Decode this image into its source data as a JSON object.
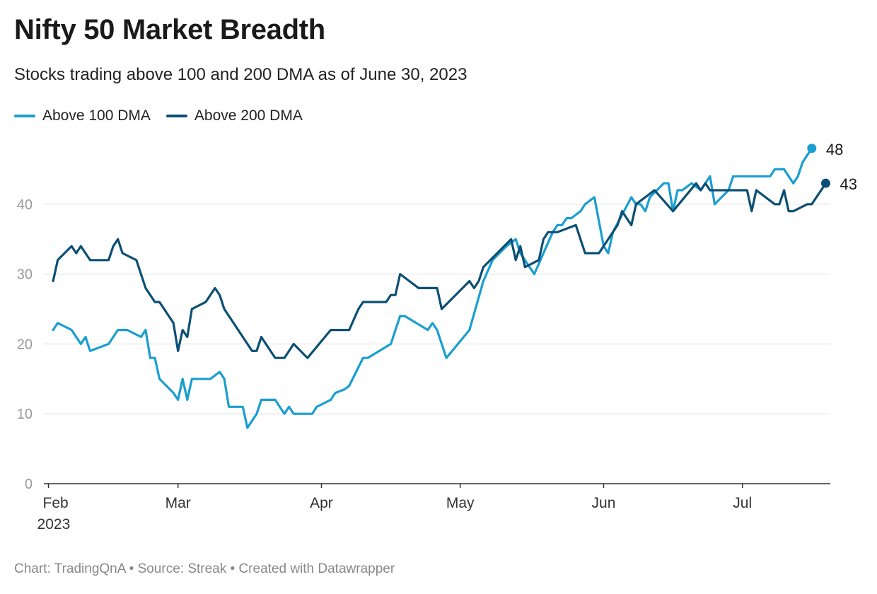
{
  "title": "Nifty 50 Market Breadth",
  "subtitle": "Stocks trading above 100 and 200 DMA as of June 30, 2023",
  "footer": "Chart: TradingQnA • Source: Streak • Created with Datawrapper",
  "colors": {
    "above100": "#1a9ed0",
    "above200": "#0b4f74",
    "grid": "#e0e0e0",
    "axis": "#333333",
    "tick": "#999999"
  },
  "chart_data": {
    "type": "line",
    "title": "Nifty 50 Market Breadth",
    "subtitle": "Stocks trading above 100 and 200 DMA as of June 30, 2023",
    "xlabel": "",
    "ylabel": "",
    "ylim": [
      0,
      48
    ],
    "yticks": [
      0,
      10,
      20,
      30,
      40
    ],
    "xticks": [
      {
        "date": "2023-02-01",
        "label": "Feb",
        "sublabel": "2023"
      },
      {
        "date": "2023-03-01",
        "label": "Mar"
      },
      {
        "date": "2023-04-01",
        "label": "Apr"
      },
      {
        "date": "2023-05-01",
        "label": "May"
      },
      {
        "date": "2023-06-01",
        "label": "Jun"
      },
      {
        "date": "2023-07-01",
        "label": "Jul"
      }
    ],
    "grid": true,
    "legend_position": "top-left",
    "series": [
      {
        "name": "Above 100 DMA",
        "color": "#1a9ed0",
        "end_label": "48",
        "points": [
          [
            "2023-02-02",
            22
          ],
          [
            "2023-02-03",
            23
          ],
          [
            "2023-02-06",
            22
          ],
          [
            "2023-02-08",
            20
          ],
          [
            "2023-02-09",
            21
          ],
          [
            "2023-02-10",
            19
          ],
          [
            "2023-02-14",
            20
          ],
          [
            "2023-02-16",
            22
          ],
          [
            "2023-02-18",
            22
          ],
          [
            "2023-02-21",
            21
          ],
          [
            "2023-02-22",
            22
          ],
          [
            "2023-02-23",
            18
          ],
          [
            "2023-02-24",
            18
          ],
          [
            "2023-02-25",
            15
          ],
          [
            "2023-02-28",
            13
          ],
          [
            "2023-03-01",
            12
          ],
          [
            "2023-03-02",
            15
          ],
          [
            "2023-03-03",
            12
          ],
          [
            "2023-03-04",
            15
          ],
          [
            "2023-03-08",
            15
          ],
          [
            "2023-03-10",
            16
          ],
          [
            "2023-03-11",
            15
          ],
          [
            "2023-03-12",
            11
          ],
          [
            "2023-03-15",
            11
          ],
          [
            "2023-03-16",
            8
          ],
          [
            "2023-03-18",
            10
          ],
          [
            "2023-03-19",
            12
          ],
          [
            "2023-03-22",
            12
          ],
          [
            "2023-03-24",
            10
          ],
          [
            "2023-03-25",
            11
          ],
          [
            "2023-03-26",
            10
          ],
          [
            "2023-03-30",
            10
          ],
          [
            "2023-03-31",
            11
          ],
          [
            "2023-04-03",
            12
          ],
          [
            "2023-04-04",
            13
          ],
          [
            "2023-04-06",
            13.5
          ],
          [
            "2023-04-07",
            14
          ],
          [
            "2023-04-10",
            18
          ],
          [
            "2023-04-11",
            18
          ],
          [
            "2023-04-16",
            20
          ],
          [
            "2023-04-18",
            24
          ],
          [
            "2023-04-19",
            24
          ],
          [
            "2023-04-24",
            22
          ],
          [
            "2023-04-25",
            23
          ],
          [
            "2023-04-26",
            22
          ],
          [
            "2023-04-28",
            18
          ],
          [
            "2023-05-03",
            22
          ],
          [
            "2023-05-06",
            29
          ],
          [
            "2023-05-08",
            32
          ],
          [
            "2023-05-11",
            34
          ],
          [
            "2023-05-13",
            35
          ],
          [
            "2023-05-14",
            33
          ],
          [
            "2023-05-16",
            31
          ],
          [
            "2023-05-17",
            30
          ],
          [
            "2023-05-21",
            36
          ],
          [
            "2023-05-22",
            37
          ],
          [
            "2023-05-23",
            37
          ],
          [
            "2023-05-24",
            38
          ],
          [
            "2023-05-25",
            38
          ],
          [
            "2023-05-27",
            39
          ],
          [
            "2023-05-28",
            40
          ],
          [
            "2023-05-30",
            41
          ],
          [
            "2023-06-01",
            34
          ],
          [
            "2023-06-02",
            33
          ],
          [
            "2023-06-03",
            36
          ],
          [
            "2023-06-07",
            41
          ],
          [
            "2023-06-08",
            40
          ],
          [
            "2023-06-09",
            40
          ],
          [
            "2023-06-10",
            39
          ],
          [
            "2023-06-11",
            41
          ],
          [
            "2023-06-14",
            43
          ],
          [
            "2023-06-15",
            43
          ],
          [
            "2023-06-16",
            39
          ],
          [
            "2023-06-17",
            42
          ],
          [
            "2023-06-18",
            42
          ],
          [
            "2023-06-20",
            43
          ],
          [
            "2023-06-22",
            42
          ],
          [
            "2023-06-24",
            44
          ],
          [
            "2023-06-25",
            40
          ],
          [
            "2023-06-28",
            42
          ],
          [
            "2023-06-29",
            44
          ],
          [
            "2023-07-06",
            44
          ],
          [
            "2023-07-07",
            44
          ],
          [
            "2023-07-08",
            45
          ],
          [
            "2023-07-10",
            45
          ],
          [
            "2023-07-12",
            43
          ],
          [
            "2023-07-13",
            44
          ],
          [
            "2023-07-14",
            46
          ],
          [
            "2023-07-16",
            48
          ]
        ]
      },
      {
        "name": "Above 200 DMA",
        "color": "#0b4f74",
        "end_label": "43",
        "points": [
          [
            "2023-02-02",
            29
          ],
          [
            "2023-02-03",
            32
          ],
          [
            "2023-02-06",
            34
          ],
          [
            "2023-02-07",
            33
          ],
          [
            "2023-02-08",
            34
          ],
          [
            "2023-02-10",
            32
          ],
          [
            "2023-02-14",
            32
          ],
          [
            "2023-02-15",
            34
          ],
          [
            "2023-02-16",
            35
          ],
          [
            "2023-02-17",
            33
          ],
          [
            "2023-02-20",
            32
          ],
          [
            "2023-02-22",
            28
          ],
          [
            "2023-02-24",
            26
          ],
          [
            "2023-02-25",
            26
          ],
          [
            "2023-02-28",
            23
          ],
          [
            "2023-03-01",
            19
          ],
          [
            "2023-03-02",
            22
          ],
          [
            "2023-03-03",
            21
          ],
          [
            "2023-03-04",
            25
          ],
          [
            "2023-03-07",
            26
          ],
          [
            "2023-03-09",
            28
          ],
          [
            "2023-03-10",
            27
          ],
          [
            "2023-03-11",
            25
          ],
          [
            "2023-03-15",
            21
          ],
          [
            "2023-03-17",
            19
          ],
          [
            "2023-03-18",
            19
          ],
          [
            "2023-03-19",
            21
          ],
          [
            "2023-03-22",
            18
          ],
          [
            "2023-03-24",
            18
          ],
          [
            "2023-03-26",
            20
          ],
          [
            "2023-03-29",
            18
          ],
          [
            "2023-04-03",
            22
          ],
          [
            "2023-04-07",
            22
          ],
          [
            "2023-04-09",
            25
          ],
          [
            "2023-04-10",
            26
          ],
          [
            "2023-04-15",
            26
          ],
          [
            "2023-04-16",
            27
          ],
          [
            "2023-04-17",
            27
          ],
          [
            "2023-04-18",
            30
          ],
          [
            "2023-04-22",
            28
          ],
          [
            "2023-04-26",
            28
          ],
          [
            "2023-04-27",
            25
          ],
          [
            "2023-04-30",
            27
          ],
          [
            "2023-05-03",
            29
          ],
          [
            "2023-05-04",
            28
          ],
          [
            "2023-05-05",
            29
          ],
          [
            "2023-05-06",
            31
          ],
          [
            "2023-05-12",
            35
          ],
          [
            "2023-05-13",
            32
          ],
          [
            "2023-05-14",
            34
          ],
          [
            "2023-05-15",
            31
          ],
          [
            "2023-05-18",
            32
          ],
          [
            "2023-05-19",
            35
          ],
          [
            "2023-05-20",
            36
          ],
          [
            "2023-05-22",
            36
          ],
          [
            "2023-05-26",
            37
          ],
          [
            "2023-05-28",
            33
          ],
          [
            "2023-05-31",
            33
          ],
          [
            "2023-06-04",
            37
          ],
          [
            "2023-06-05",
            39
          ],
          [
            "2023-06-07",
            37
          ],
          [
            "2023-06-08",
            40
          ],
          [
            "2023-06-12",
            42
          ],
          [
            "2023-06-16",
            39
          ],
          [
            "2023-06-21",
            43
          ],
          [
            "2023-06-22",
            42
          ],
          [
            "2023-06-23",
            43
          ],
          [
            "2023-06-24",
            42
          ],
          [
            "2023-07-01",
            42
          ],
          [
            "2023-07-02",
            42
          ],
          [
            "2023-07-03",
            39
          ],
          [
            "2023-07-04",
            42
          ],
          [
            "2023-07-08",
            40
          ],
          [
            "2023-07-09",
            40
          ],
          [
            "2023-07-10",
            42
          ],
          [
            "2023-07-11",
            39
          ],
          [
            "2023-07-12",
            39
          ],
          [
            "2023-07-15",
            40
          ],
          [
            "2023-07-16",
            40
          ],
          [
            "2023-07-19",
            43
          ]
        ]
      }
    ]
  }
}
